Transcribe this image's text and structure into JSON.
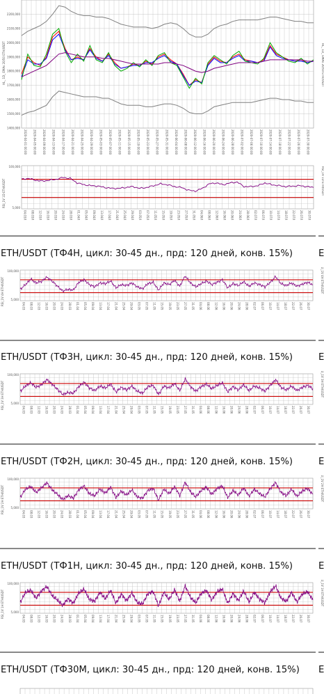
{
  "chart_data": [
    {
      "type": "line",
      "name": "price-panel",
      "ylabel": "HL_ 1D_ EMAs 20/50 ETH/USDT",
      "ylim": [
        1400000,
        2300000
      ],
      "y_ticks": [
        "1400,000",
        "1500,000",
        "1600,000",
        "1700,000",
        "1800,000",
        "1900,000",
        "2000,000",
        "2100,000",
        "2200,000"
      ],
      "x_ticks": [
        "2020-04-01 00:00",
        "2020-04-05 00:00",
        "2020-04-09 00:00",
        "2020-04-13 00:00",
        "2020-04-17 00:00",
        "2020-04-21 00:00",
        "2020-04-25 00:00",
        "2020-04-29 00:00",
        "2020-05-03 00:00",
        "2020-05-07 00:00",
        "2020-05-11 00:00",
        "2020-05-15 00:00",
        "2020-05-19 00:00",
        "2020-05-23 00:00",
        "2020-05-27 00:00",
        "2020-05-31 00:00",
        "2020-06-04 00:00",
        "2020-06-08 00:00",
        "2020-06-12 00:00",
        "2020-06-16 00:00",
        "2020-06-20 00:00",
        "2020-06-24 00:00",
        "2020-06-28 00:00",
        "2020-07-02 00:00",
        "2020-07-06 00:00",
        "2020-07-10 00:00",
        "2020-07-14 00:00",
        "2020-07-18 00:00",
        "2020-07-22 00:00",
        "2020-07-26 00:00",
        "2020-07-30 00:00"
      ],
      "series": [
        {
          "color": "#ff0000",
          "values": [
            1780000,
            1900000,
            1860000,
            1840000,
            1900000,
            2040000,
            2080000,
            1960000,
            1880000,
            1900000,
            1880000,
            1960000,
            1900000,
            1870000,
            1920000,
            1860000,
            1820000,
            1830000,
            1850000,
            1840000,
            1870000,
            1850000,
            1900000,
            1920000,
            1880000,
            1850000,
            1780000,
            1700000,
            1740000,
            1720000,
            1850000,
            1900000,
            1870000,
            1860000,
            1900000,
            1920000,
            1880000,
            1870000,
            1860000,
            1880000,
            1980000,
            1920000,
            1900000,
            1880000,
            1870000,
            1880000,
            1860000,
            1870000
          ]
        },
        {
          "color": "#0000ff",
          "values": [
            1760000,
            1880000,
            1850000,
            1850000,
            1890000,
            2020000,
            2060000,
            1950000,
            1880000,
            1890000,
            1880000,
            1950000,
            1890000,
            1870000,
            1910000,
            1850000,
            1820000,
            1830000,
            1840000,
            1840000,
            1860000,
            1860000,
            1890000,
            1910000,
            1870000,
            1850000,
            1770000,
            1700000,
            1730000,
            1720000,
            1840000,
            1890000,
            1860000,
            1860000,
            1890000,
            1910000,
            1870000,
            1870000,
            1860000,
            1870000,
            1970000,
            1910000,
            1890000,
            1880000,
            1870000,
            1870000,
            1860000,
            1870000
          ]
        },
        {
          "color": "#00aa00",
          "values": [
            1740000,
            1920000,
            1840000,
            1830000,
            1920000,
            2060000,
            2100000,
            1940000,
            1860000,
            1920000,
            1870000,
            1980000,
            1880000,
            1860000,
            1930000,
            1840000,
            1800000,
            1820000,
            1860000,
            1830000,
            1880000,
            1840000,
            1910000,
            1930000,
            1860000,
            1840000,
            1760000,
            1680000,
            1750000,
            1710000,
            1860000,
            1910000,
            1880000,
            1850000,
            1910000,
            1940000,
            1870000,
            1860000,
            1850000,
            1890000,
            2000000,
            1930000,
            1900000,
            1870000,
            1860000,
            1890000,
            1850000,
            1880000
          ]
        },
        {
          "color": "#800080",
          "values": [
            1760000,
            1780000,
            1800000,
            1820000,
            1840000,
            1880000,
            1920000,
            1930000,
            1920000,
            1910000,
            1900000,
            1900000,
            1900000,
            1890000,
            1890000,
            1880000,
            1870000,
            1860000,
            1850000,
            1850000,
            1850000,
            1850000,
            1850000,
            1860000,
            1860000,
            1850000,
            1840000,
            1820000,
            1800000,
            1790000,
            1800000,
            1820000,
            1830000,
            1840000,
            1850000,
            1860000,
            1860000,
            1860000,
            1860000,
            1870000,
            1880000,
            1880000,
            1880000,
            1880000,
            1880000,
            1880000,
            1870000,
            1870000
          ]
        },
        {
          "color": "#808080",
          "values": [
            2050000,
            2080000,
            2100000,
            2120000,
            2150000,
            2200000,
            2260000,
            2250000,
            2220000,
            2200000,
            2190000,
            2190000,
            2180000,
            2180000,
            2170000,
            2150000,
            2130000,
            2120000,
            2110000,
            2110000,
            2110000,
            2100000,
            2110000,
            2130000,
            2140000,
            2130000,
            2100000,
            2060000,
            2040000,
            2040000,
            2060000,
            2100000,
            2120000,
            2130000,
            2150000,
            2160000,
            2160000,
            2160000,
            2160000,
            2170000,
            2180000,
            2180000,
            2170000,
            2160000,
            2150000,
            2150000,
            2140000,
            2140000
          ]
        },
        {
          "color": "#808080",
          "values": [
            1490000,
            1510000,
            1520000,
            1540000,
            1560000,
            1620000,
            1660000,
            1650000,
            1640000,
            1630000,
            1620000,
            1620000,
            1620000,
            1610000,
            1610000,
            1590000,
            1570000,
            1560000,
            1560000,
            1560000,
            1550000,
            1550000,
            1560000,
            1570000,
            1570000,
            1560000,
            1540000,
            1510000,
            1500000,
            1500000,
            1520000,
            1550000,
            1560000,
            1570000,
            1580000,
            1580000,
            1580000,
            1580000,
            1590000,
            1600000,
            1610000,
            1610000,
            1600000,
            1600000,
            1590000,
            1590000,
            1580000,
            1580000
          ]
        }
      ]
    },
    {
      "type": "line",
      "name": "rsi-1d",
      "ylabel": "RSI_1V 1D ETH/USDT",
      "ylim": [
        5,
        100
      ],
      "y_ticks": [
        "100,000",
        "5,000"
      ],
      "hlines": [
        70,
        30
      ],
      "x_ticks": [
        "04.03/00",
        "08.03/00",
        "12.03/00",
        "16.03/00",
        "20.03/00",
        "24.03/00",
        "28.03/00",
        "01.04/00",
        "05.04/00",
        "09.04/00",
        "13.04/00",
        "17.04/00",
        "21.04/00",
        "25.04/00",
        "29.04/00",
        "03.05/00",
        "07.05/00",
        "11.05/00",
        "15.05/00",
        "19.05/00",
        "23.05/00",
        "27.05/00",
        "31.05/00",
        "04.06/00",
        "08.06/00",
        "12.06/00",
        "16.06/00",
        "20.06/00",
        "24.06/00",
        "28.06/00",
        "02.07/00",
        "06.07/00",
        "10.07/00",
        "14.07/00",
        "18.07/00",
        "22.07/00",
        "26.07/00",
        "30.07/00"
      ],
      "series": [
        {
          "color": "#800080",
          "values": [
            70,
            72,
            68,
            66,
            68,
            70,
            74,
            72,
            62,
            58,
            56,
            55,
            52,
            50,
            50,
            52,
            54,
            50,
            52,
            56,
            60,
            58,
            54,
            52,
            46,
            44,
            50,
            60,
            62,
            58,
            62,
            64,
            54,
            54,
            56,
            62,
            58,
            56,
            54,
            55,
            56,
            54,
            52
          ]
        }
      ]
    },
    {
      "type": "line",
      "name": "rsi-4h",
      "ylabel": "RSI_1V 4H ETH/USDT",
      "ylim": [
        5,
        100
      ],
      "y_ticks": [
        "100,000",
        "5,000"
      ],
      "hlines": [
        70,
        30
      ],
      "x_ticks": [
        "04.03",
        "08.03",
        "12.03",
        "16.03",
        "20.03",
        "24.03",
        "28.03",
        "01.04",
        "05.04",
        "09.04",
        "13.04",
        "17.04",
        "21.04",
        "25.04",
        "29.04",
        "03.05",
        "07.05",
        "11.05",
        "15.05",
        "19.05",
        "23.05",
        "27.05",
        "31.05",
        "04.06",
        "08.06",
        "12.06",
        "16.06",
        "20.06",
        "24.06",
        "28.06",
        "02.07",
        "06.07",
        "10.07",
        "14.07",
        "18.07",
        "22.07",
        "26.07",
        "30.07"
      ],
      "series": [
        {
          "color": "#800080",
          "values": [
            40,
            55,
            72,
            60,
            65,
            78,
            66,
            50,
            35,
            40,
            38,
            62,
            70,
            55,
            48,
            60,
            58,
            66,
            45,
            55,
            52,
            60,
            48,
            42,
            58,
            62,
            38,
            60,
            55,
            68,
            50,
            82,
            60,
            48,
            58,
            66,
            55,
            62,
            70,
            45,
            58,
            52,
            64,
            50,
            60,
            55,
            48,
            62,
            80,
            58,
            52,
            60,
            50,
            56,
            62,
            55
          ]
        }
      ]
    },
    {
      "type": "line",
      "name": "rsi-3h",
      "ylabel": "RSI_1V 3H ETH/USDT",
      "ylim": [
        5,
        100
      ],
      "y_ticks": [
        "100,000",
        "5,000"
      ],
      "hlines": [
        70,
        30
      ],
      "x_ticks": [
        "04.03",
        "08.03",
        "12.03",
        "16.03",
        "20.03",
        "24.03",
        "28.03",
        "01.04",
        "05.04",
        "09.04",
        "13.04",
        "17.04",
        "21.04",
        "25.04",
        "29.04",
        "03.05",
        "07.05",
        "11.05",
        "15.05",
        "19.05",
        "23.05",
        "27.05",
        "31.05",
        "04.06",
        "08.06",
        "12.06",
        "16.06",
        "20.06",
        "24.06",
        "28.06",
        "02.07",
        "06.07",
        "10.07",
        "14.07",
        "18.07",
        "22.07",
        "26.07",
        "30.07"
      ],
      "series": [
        {
          "color": "#800080",
          "values": [
            45,
            62,
            72,
            58,
            66,
            82,
            68,
            52,
            36,
            42,
            40,
            60,
            74,
            56,
            48,
            62,
            56,
            68,
            44,
            58,
            50,
            62,
            46,
            40,
            60,
            64,
            36,
            62,
            56,
            70,
            48,
            84,
            60,
            46,
            60,
            68,
            54,
            64,
            72,
            44,
            60,
            50,
            66,
            48,
            62,
            56,
            46,
            64,
            82,
            58,
            50,
            62,
            48,
            58,
            64,
            54
          ]
        }
      ]
    },
    {
      "type": "line",
      "name": "rsi-2h",
      "ylabel": "RSI_1V 2H ETH/USDT",
      "ylim": [
        5,
        100
      ],
      "y_ticks": [
        "100,000",
        "5,000"
      ],
      "hlines": [
        70,
        30
      ],
      "x_ticks": [
        "04.03",
        "08.03",
        "12.03",
        "16.03",
        "20.03",
        "24.03",
        "28.03",
        "01.04",
        "05.04",
        "09.04",
        "13.04",
        "17.04",
        "21.04",
        "25.04",
        "29.04",
        "03.05",
        "07.05",
        "11.05",
        "15.05",
        "19.05",
        "23.05",
        "27.05",
        "31.05",
        "04.06",
        "08.06",
        "12.06",
        "16.06",
        "20.06",
        "24.06",
        "28.06",
        "02.07",
        "06.07",
        "10.07",
        "14.07",
        "18.07",
        "22.07",
        "26.07",
        "30.07"
      ],
      "series": [
        {
          "color": "#800080",
          "values": [
            40,
            66,
            74,
            56,
            70,
            86,
            64,
            50,
            34,
            46,
            38,
            64,
            76,
            52,
            46,
            66,
            54,
            72,
            40,
            60,
            48,
            64,
            42,
            38,
            62,
            68,
            32,
            66,
            52,
            74,
            46,
            88,
            58,
            42,
            62,
            72,
            50,
            68,
            76,
            40,
            62,
            48,
            70,
            44,
            66,
            52,
            42,
            68,
            86,
            56,
            46,
            66,
            44,
            60,
            68,
            50
          ]
        }
      ]
    },
    {
      "type": "line",
      "name": "rsi-1h",
      "ylabel": "RSI_1V 1H ETH/USDT",
      "ylim": [
        5,
        100
      ],
      "y_ticks": [
        "100,000",
        "5,000"
      ],
      "hlines": [
        70,
        30
      ],
      "x_ticks": [
        "04.03",
        "08.03",
        "12.03",
        "16.03",
        "20.03",
        "24.03",
        "28.03",
        "01.04",
        "05.04",
        "09.04",
        "13.04",
        "17.04",
        "21.04",
        "25.04",
        "29.04",
        "03.05",
        "07.05",
        "11.05",
        "15.05",
        "19.05",
        "23.05",
        "27.05",
        "31.05",
        "04.06",
        "08.06",
        "12.06",
        "16.06",
        "20.06",
        "24.06",
        "28.06",
        "02.07",
        "06.07",
        "10.07",
        "14.07",
        "18.07",
        "22.07",
        "26.07",
        "30.07"
      ],
      "series": [
        {
          "color": "#800080",
          "values": [
            38,
            70,
            76,
            52,
            74,
            88,
            60,
            46,
            30,
            50,
            36,
            68,
            80,
            48,
            42,
            70,
            50,
            76,
            36,
            64,
            44,
            68,
            38,
            34,
            66,
            72,
            28,
            70,
            48,
            78,
            42,
            90,
            54,
            38,
            66,
            76,
            46,
            72,
            80,
            36,
            66,
            44,
            74,
            40,
            70,
            48,
            38,
            72,
            90,
            52,
            42,
            70,
            40,
            64,
            72,
            46
          ]
        }
      ]
    }
  ],
  "titles": {
    "t4h": "ETH/USDT (ТФ4Н, цикл: 30-45 дн., прд: 120 дней, конв. 15%)",
    "t3h": "ETH/USDT (ТФ3Н, цикл: 30-45 дн., прд: 120 дней, конв. 15%)",
    "t2h": "ETH/USDT (ТФ2Н, цикл: 30-45 дн., прд: 120 дней, конв. 15%)",
    "t1h": "ETH/USDT (ТФ1Н, цикл: 30-45 дн., прд: 120 дней, конв. 15%)",
    "t30m": "ETH/USDT (ТФ30М, цикл: 30-45 дн., прд: 120 дней, конв. 15%)",
    "clip": "E"
  },
  "colors": {
    "upper_band": "#cc0000",
    "lower_band": "#cc0000",
    "rsi": "#800080",
    "grid": "#bbbbbb"
  }
}
